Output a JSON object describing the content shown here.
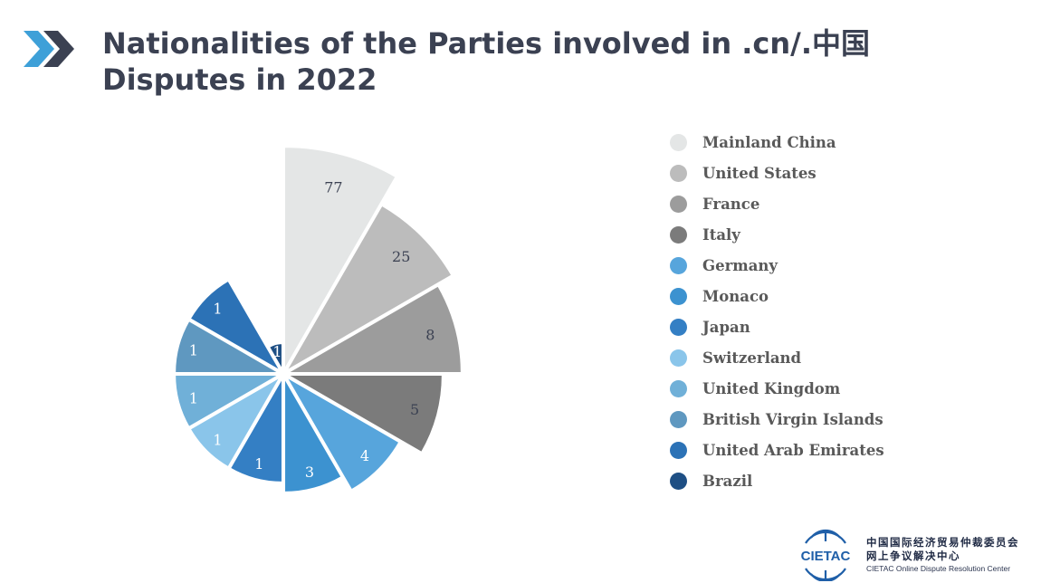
{
  "header": {
    "title_line1": "Nationalities of the Parties involved in .cn/.中国",
    "title_line2": "Disputes in 2022",
    "chevron_color_light": "#3ea0d8",
    "chevron_color_dark": "#3b4152"
  },
  "chart_data": {
    "type": "pie",
    "variant": "rose",
    "title": "Nationalities of the Parties involved in .cn/.中国 Disputes in 2022",
    "legend_position": "right",
    "slices": [
      {
        "label": "Mainland China",
        "value": 77,
        "color": "#e4e6e6"
      },
      {
        "label": "United States",
        "value": 25,
        "color": "#bcbcbc"
      },
      {
        "label": "France",
        "value": 8,
        "color": "#9c9c9c"
      },
      {
        "label": "Italy",
        "value": 5,
        "color": "#7b7b7b"
      },
      {
        "label": "Germany",
        "value": 4,
        "color": "#57a5dc"
      },
      {
        "label": "Monaco",
        "value": 3,
        "color": "#3c92d0"
      },
      {
        "label": "Japan",
        "value": 1,
        "color": "#347fc4"
      },
      {
        "label": "Switzerland",
        "value": 1,
        "color": "#8ac5ea"
      },
      {
        "label": "United Kingdom",
        "value": 1,
        "color": "#70b0d8"
      },
      {
        "label": "British Virgin Islands",
        "value": 1,
        "color": "#5f98c0"
      },
      {
        "label": "United Arab Emirates",
        "value": 1,
        "color": "#2c72b6"
      },
      {
        "label": "Brazil",
        "value": 1,
        "color": "#1e4f84"
      }
    ]
  },
  "footer": {
    "logo_text": "CIETAC",
    "org_line1": "中国国际经济贸易仲裁委员会",
    "org_line2": "网上争议解决中心",
    "org_line3": "CIETAC Online Dispute Resolution Center",
    "logo_color": "#1f5fa8"
  }
}
